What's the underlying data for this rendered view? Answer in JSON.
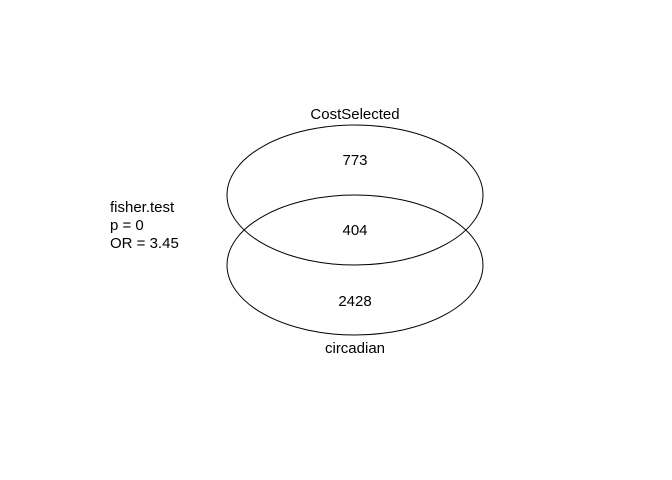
{
  "venn": {
    "set_a": {
      "name": "CostSelected",
      "only_count": "773"
    },
    "set_b": {
      "name": "circadian",
      "only_count": "2428"
    },
    "intersection_count": "404"
  },
  "stats": {
    "test": "fisher.test",
    "p_value": "p = 0",
    "odds_ratio": "OR = 3.45"
  },
  "colors": {
    "background": "#ffffff",
    "stroke": "#000000",
    "text": "#000000"
  }
}
